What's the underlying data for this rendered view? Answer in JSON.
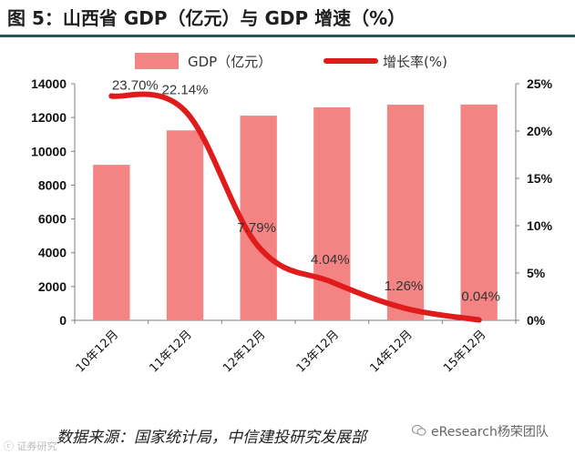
{
  "page": {
    "title": "图 5：山西省 GDP（亿元）与 GDP 增速（%）",
    "source": "数据来源：国家统计局，中信建投研究发展部",
    "watermark": "eResearch杨荣团队",
    "bottom_mark": "ⓒ 证券研究"
  },
  "colors": {
    "bar": "#f48383",
    "line": "#e01b1b",
    "axis": "#7f7f7f",
    "title_rule": "#1f5c58"
  },
  "chart_data": {
    "type": "bar",
    "categories": [
      "10年12月",
      "11年12月",
      "12年12月",
      "13年12月",
      "14年12月",
      "15年12月"
    ],
    "series": [
      {
        "name": "GDP（亿元）",
        "type": "bar",
        "axis": "left",
        "values": [
          9200,
          11240,
          12110,
          12600,
          12760,
          12770
        ]
      },
      {
        "name": "增长率(%)",
        "type": "line",
        "axis": "right",
        "values": [
          23.7,
          22.14,
          7.79,
          4.04,
          1.26,
          0.04
        ],
        "labels": [
          "23.70%",
          "22.14%",
          "7.79%",
          "4.04%",
          "1.26%",
          "0.04%"
        ]
      }
    ],
    "left_axis": {
      "min": 0,
      "max": 14000,
      "ticks": [
        "0",
        "2000",
        "4000",
        "6000",
        "8000",
        "10000",
        "12000",
        "14000"
      ]
    },
    "right_axis": {
      "min": 0,
      "max": 25,
      "ticks": [
        "0%",
        "5%",
        "10%",
        "15%",
        "20%",
        "25%"
      ]
    },
    "legend": {
      "position": "top",
      "bar_label": "GDP（亿元）",
      "line_label": "增长率(%)"
    }
  }
}
